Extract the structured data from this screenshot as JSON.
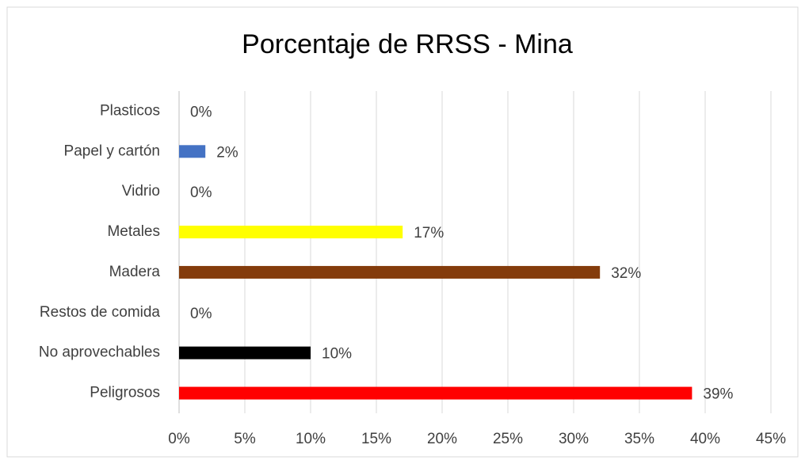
{
  "chart_data": {
    "type": "hbar",
    "title": "Porcentaje de RRSS - Mina",
    "categories": [
      "Plasticos",
      "Papel y cartón",
      "Vidrio",
      "Metales",
      "Madera",
      "Restos de comida",
      "No aprovechables",
      "Peligrosos"
    ],
    "values": [
      0,
      2,
      0,
      17,
      32,
      0,
      10,
      39
    ],
    "value_labels": [
      "0%",
      "2%",
      "0%",
      "17%",
      "32%",
      "0%",
      "10%",
      "39%"
    ],
    "colors": [
      null,
      "#4472c4",
      null,
      "#ffff00",
      "#843c0c",
      null,
      "#000000",
      "#ff0000"
    ],
    "xlim": [
      0,
      45
    ],
    "xticks": [
      {
        "value": 0,
        "label": "0%"
      },
      {
        "value": 5,
        "label": "5%"
      },
      {
        "value": 10,
        "label": "10%"
      },
      {
        "value": 15,
        "label": "15%"
      },
      {
        "value": 20,
        "label": "20%"
      },
      {
        "value": 25,
        "label": "25%"
      },
      {
        "value": 30,
        "label": "30%"
      },
      {
        "value": 35,
        "label": "35%"
      },
      {
        "value": 40,
        "label": "40%"
      },
      {
        "value": 45,
        "label": "45%"
      }
    ],
    "grid": true
  }
}
